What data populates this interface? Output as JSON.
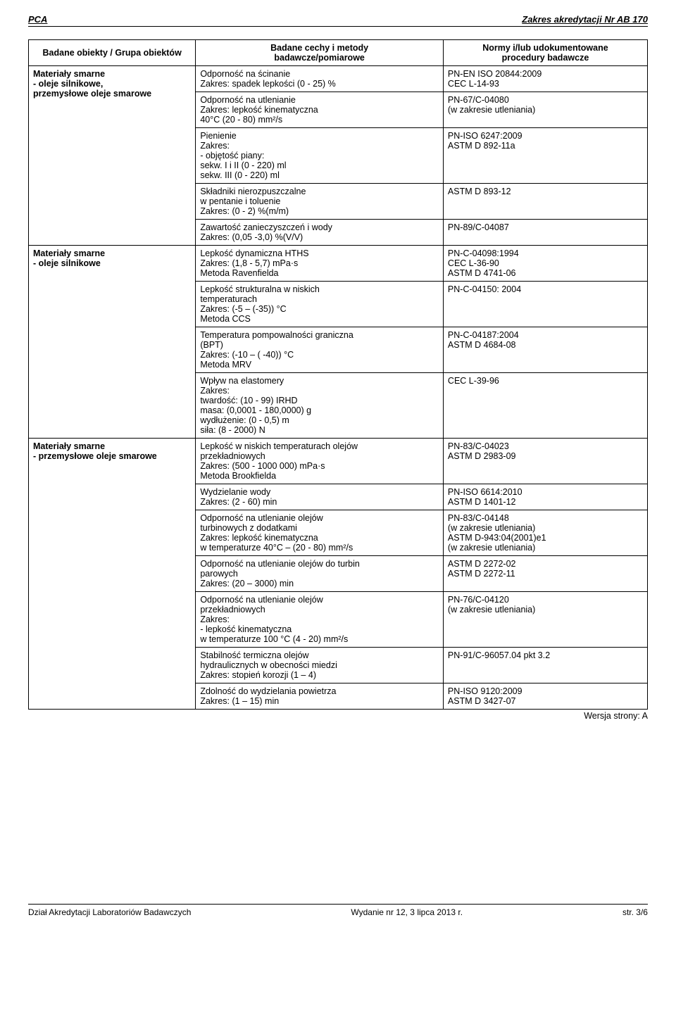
{
  "header": {
    "left": "PCA",
    "right": "Zakres akredytacji Nr AB 170"
  },
  "tableHeaders": {
    "col1": "Badane obiekty / Grupa obiektów",
    "col2_l1": "Badane cechy i metody",
    "col2_l2": "badawcze/pomiarowe",
    "col3_l1": "Normy i/lub udokumentowane",
    "col3_l2": "procedury badawcze"
  },
  "groups": [
    {
      "object_l1": "Materiały smarne",
      "object_l2": "- oleje silnikowe,",
      "object_l3": "przemysłowe oleje smarowe",
      "rows": [
        {
          "method": "Odporność na ścinanie\nZakres: spadek lepkości  (0 - 25) %",
          "norm": "PN-EN ISO 20844:2009\nCEC L-14-93"
        },
        {
          "method": "Odporność na utlenianie\nZakres: lepkość kinematyczna\n40°C  (20 - 80) mm²/s",
          "norm": "PN-67/C-04080\n(w zakresie utleniania)"
        },
        {
          "method": "Pienienie\nZakres:\n- objętość piany:\n  sekw. I i II  (0 - 220) ml\n  sekw. III  (0 - 220) ml",
          "norm": "PN-ISO 6247:2009\nASTM D 892-11a"
        },
        {
          "method": "Składniki nierozpuszczalne\nw pentanie i toluenie\nZakres: (0 -  2) %(m/m)",
          "norm": "ASTM D 893-12"
        },
        {
          "method": "Zawartość zanieczyszczeń i wody\nZakres: (0,05 -3,0) %(V/V)",
          "norm": "PN-89/C-04087"
        }
      ]
    },
    {
      "object_l1": "Materiały smarne",
      "object_l2": "- oleje silnikowe",
      "object_l3": "",
      "rows": [
        {
          "method": "Lepkość dynamiczna HTHS\nZakres: (1,8 - 5,7) mPa·s\nMetoda Ravenfielda",
          "norm": "PN-C-04098:1994\nCEC L-36-90\nASTM D 4741-06"
        },
        {
          "method": "Lepkość strukturalna w niskich\ntemperaturach\nZakres: (-5 – (-35)) °C\nMetoda CCS",
          "norm": "PN-C-04150: 2004"
        },
        {
          "method": "Temperatura pompowalności graniczna\n(BPT)\nZakres: (-10 – ( -40)) °C\nMetoda MRV",
          "norm": "PN-C-04187:2004\nASTM D 4684-08"
        },
        {
          "method": "Wpływ na elastomery\nZakres:\ntwardość:      (10 - 99) IRHD\nmasa:           (0,0001 - 180,0000) g\nwydłużenie:  (0 - 0,5) m\nsiła:              (8 - 2000) N",
          "norm": "CEC L-39-96"
        }
      ]
    },
    {
      "object_l1": "Materiały smarne",
      "object_l2": "- przemysłowe oleje smarowe",
      "object_l3": "",
      "rows": [
        {
          "method": "Lepkość w niskich temperaturach olejów\nprzekładniowych\nZakres: (500 - 1000 000) mPa·s\nMetoda Brookfielda",
          "norm": "PN-83/C-04023\nASTM D 2983-09"
        },
        {
          "method": "Wydzielanie wody\nZakres: (2 - 60) min",
          "norm": "PN-ISO 6614:2010\nASTM D 1401-12"
        },
        {
          "method": "Odporność na utlenianie olejów\nturbinowych z dodatkami\nZakres: lepkość kinematyczna\nw temperaturze 40°C – (20 - 80) mm²/s",
          "norm": "PN-83/C-04148\n(w zakresie utleniania)\nASTM D-943:04(2001)e1\n(w zakresie utleniania)"
        },
        {
          "method": "Odporność na utlenianie olejów do turbin\nparowych\nZakres: (20 – 3000) min",
          "norm": "ASTM D 2272-02\nASTM D 2272-11"
        },
        {
          "method": "Odporność na utlenianie olejów\nprzekładniowych\nZakres:\n- lepkość kinematyczna\nw temperaturze 100 °C (4 - 20) mm²/s",
          "norm": "PN-76/C-04120\n(w zakresie utleniania)"
        },
        {
          "method": "Stabilność termiczna olejów\nhydraulicznych w obecności miedzi\nZakres: stopień korozji (1 – 4)",
          "norm": "PN-91/C-96057.04 pkt 3.2"
        },
        {
          "method": "Zdolność do wydzielania powietrza\nZakres: (1 – 15) min",
          "norm": "PN-ISO 9120:2009\nASTM D 3427-07"
        }
      ]
    }
  ],
  "versionLine": "Wersja strony: A",
  "footer": {
    "left": "Dział Akredytacji Laboratoriów Badawczych",
    "center": "Wydanie nr 12, 3 lipca 2013 r.",
    "right": "str.  3/6"
  }
}
